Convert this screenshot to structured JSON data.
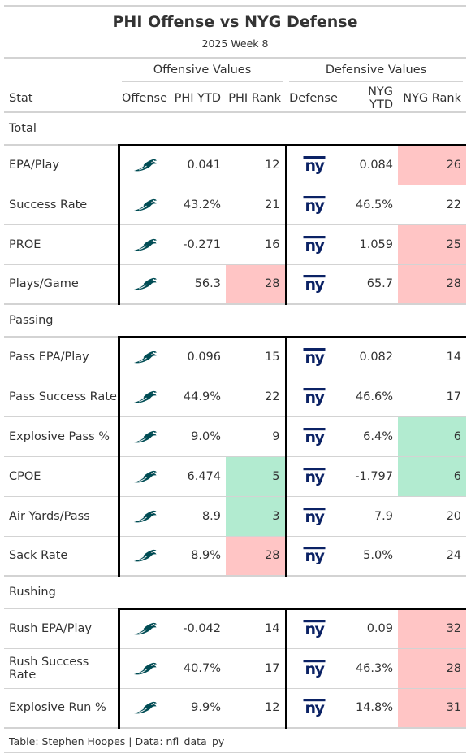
{
  "title": "PHI Offense vs NYG Defense",
  "subtitle": "2025 Week 8",
  "spanners": {
    "offense": "Offensive Values",
    "defense": "Defensive Values"
  },
  "columns": {
    "stat": "Stat",
    "offense": "Offense",
    "phi_ytd": "PHI YTD",
    "phi_rank": "PHI Rank",
    "defense": "Defense",
    "nyg_ytd": "NYG YTD",
    "nyg_rank": "NYG Rank"
  },
  "colors": {
    "bad": "#ffc5c5",
    "good": "#b2ebd0",
    "eagles": "#004c54",
    "giants": "#0b2265"
  },
  "icons": {
    "offense_logo": "eagles-logo-icon",
    "defense_logo": "giants-ny-logo-icon"
  },
  "groups": [
    {
      "name": "Total",
      "rows": [
        {
          "stat": "EPA/Play",
          "phi_ytd": "0.041",
          "phi_rank": "12",
          "phi_rank_class": "",
          "nyg_ytd": "0.084",
          "nyg_rank": "26",
          "nyg_rank_class": "bad"
        },
        {
          "stat": "Success Rate",
          "phi_ytd": "43.2%",
          "phi_rank": "21",
          "phi_rank_class": "",
          "nyg_ytd": "46.5%",
          "nyg_rank": "22",
          "nyg_rank_class": ""
        },
        {
          "stat": "PROE",
          "phi_ytd": "-0.271",
          "phi_rank": "16",
          "phi_rank_class": "",
          "nyg_ytd": "1.059",
          "nyg_rank": "25",
          "nyg_rank_class": "bad"
        },
        {
          "stat": "Plays/Game",
          "phi_ytd": "56.3",
          "phi_rank": "28",
          "phi_rank_class": "bad",
          "nyg_ytd": "65.7",
          "nyg_rank": "28",
          "nyg_rank_class": "bad"
        }
      ]
    },
    {
      "name": "Passing",
      "rows": [
        {
          "stat": "Pass EPA/Play",
          "phi_ytd": "0.096",
          "phi_rank": "15",
          "phi_rank_class": "",
          "nyg_ytd": "0.082",
          "nyg_rank": "14",
          "nyg_rank_class": ""
        },
        {
          "stat": "Pass Success Rate",
          "phi_ytd": "44.9%",
          "phi_rank": "22",
          "phi_rank_class": "",
          "nyg_ytd": "46.6%",
          "nyg_rank": "17",
          "nyg_rank_class": ""
        },
        {
          "stat": "Explosive Pass %",
          "phi_ytd": "9.0%",
          "phi_rank": "9",
          "phi_rank_class": "",
          "nyg_ytd": "6.4%",
          "nyg_rank": "6",
          "nyg_rank_class": "good"
        },
        {
          "stat": "CPOE",
          "phi_ytd": "6.474",
          "phi_rank": "5",
          "phi_rank_class": "good",
          "nyg_ytd": "-1.797",
          "nyg_rank": "6",
          "nyg_rank_class": "good"
        },
        {
          "stat": "Air Yards/Pass",
          "phi_ytd": "8.9",
          "phi_rank": "3",
          "phi_rank_class": "good",
          "nyg_ytd": "7.9",
          "nyg_rank": "20",
          "nyg_rank_class": ""
        },
        {
          "stat": "Sack Rate",
          "phi_ytd": "8.9%",
          "phi_rank": "28",
          "phi_rank_class": "bad",
          "nyg_ytd": "5.0%",
          "nyg_rank": "24",
          "nyg_rank_class": ""
        }
      ]
    },
    {
      "name": "Rushing",
      "rows": [
        {
          "stat": "Rush EPA/Play",
          "phi_ytd": "-0.042",
          "phi_rank": "14",
          "phi_rank_class": "",
          "nyg_ytd": "0.09",
          "nyg_rank": "32",
          "nyg_rank_class": "bad"
        },
        {
          "stat": "Rush Success Rate",
          "phi_ytd": "40.7%",
          "phi_rank": "17",
          "phi_rank_class": "",
          "nyg_ytd": "46.3%",
          "nyg_rank": "28",
          "nyg_rank_class": "bad"
        },
        {
          "stat": "Explosive Run %",
          "phi_ytd": "9.9%",
          "phi_rank": "12",
          "phi_rank_class": "",
          "nyg_ytd": "14.8%",
          "nyg_rank": "31",
          "nyg_rank_class": "bad"
        }
      ]
    }
  ],
  "footer": "Table: Stephen Hoopes | Data: nfl_data_py"
}
